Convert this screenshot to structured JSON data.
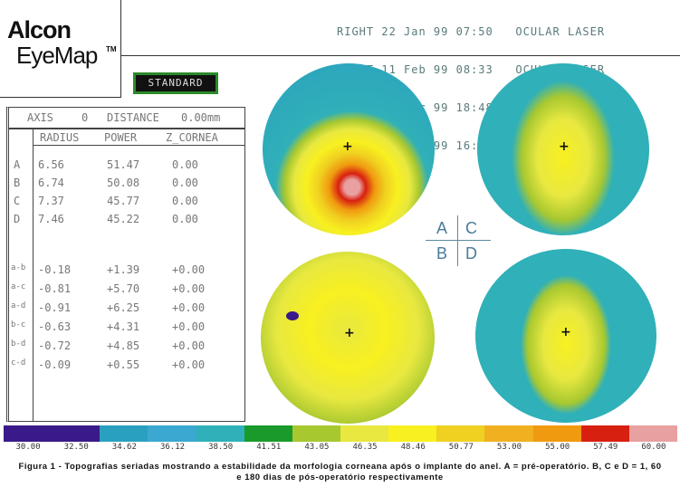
{
  "logo": {
    "line1": "Alcon",
    "line2": "EyeMap",
    "tm": "TM"
  },
  "header": {
    "exams": [
      "RIGHT 22 Jan 99 07:50   OCULAR LASER",
      "RIGHT 11 Feb 99 08:33   OCULAR LASER",
      "RIGHT 12 Apr 99 18:48   OCULAR LASER",
      "RIGHT 08 Aug 99 16:14   OCULAR LASER"
    ]
  },
  "mode_button": "STANDARD",
  "table": {
    "axis_label": "AXIS",
    "axis_value": "0",
    "distance_label": "DISTANCE",
    "distance_value": "0.00mm",
    "columns": [
      "RADIUS",
      "POWER",
      "Z_CORNEA"
    ],
    "rows": [
      {
        "id": "A",
        "radius": "6.56",
        "power": "51.47",
        "z": "0.00"
      },
      {
        "id": "B",
        "radius": "6.74",
        "power": "50.08",
        "z": "0.00"
      },
      {
        "id": "C",
        "radius": "7.37",
        "power": "45.77",
        "z": "0.00"
      },
      {
        "id": "D",
        "radius": "7.46",
        "power": "45.22",
        "z": "0.00"
      }
    ],
    "diffs": [
      {
        "id": "a-b",
        "radius": "-0.18",
        "power": "+1.39",
        "z": "+0.00"
      },
      {
        "id": "a-c",
        "radius": "-0.81",
        "power": "+5.70",
        "z": "+0.00"
      },
      {
        "id": "a-d",
        "radius": "-0.91",
        "power": "+6.25",
        "z": "+0.00"
      },
      {
        "id": "b-c",
        "radius": "-0.63",
        "power": "+4.31",
        "z": "+0.00"
      },
      {
        "id": "b-d",
        "radius": "-0.72",
        "power": "+4.85",
        "z": "+0.00"
      },
      {
        "id": "c-d",
        "radius": "-0.09",
        "power": "+0.55",
        "z": "+0.00"
      }
    ]
  },
  "quadrant": {
    "a": "A",
    "b": "B",
    "c": "C",
    "d": "D"
  },
  "scale": {
    "labels": [
      "30.00",
      "32.50",
      "34.62",
      "36.12",
      "38.50",
      "41.51",
      "43.05",
      "46.35",
      "48.46",
      "50.77",
      "53.00",
      "55.00",
      "57.49",
      "60.00"
    ],
    "colors": [
      "#3a1a8a",
      "#3a1a8a",
      "#2aa0c0",
      "#3aa8d0",
      "#30b0b8",
      "#1a9a2a",
      "#a8c830",
      "#e8e840",
      "#f8f020",
      "#f0d020",
      "#f0b020",
      "#f09a10",
      "#d82010",
      "#e8a0a0"
    ]
  },
  "caption": {
    "line1": "Figura 1 - Topografias seriadas mostrando a estabilidade da morfologia corneana após o implante do anel. A = pré-operatório. B, C e D = 1, 60",
    "line2": "e 180 dias de pós-operatório respectivamente"
  }
}
